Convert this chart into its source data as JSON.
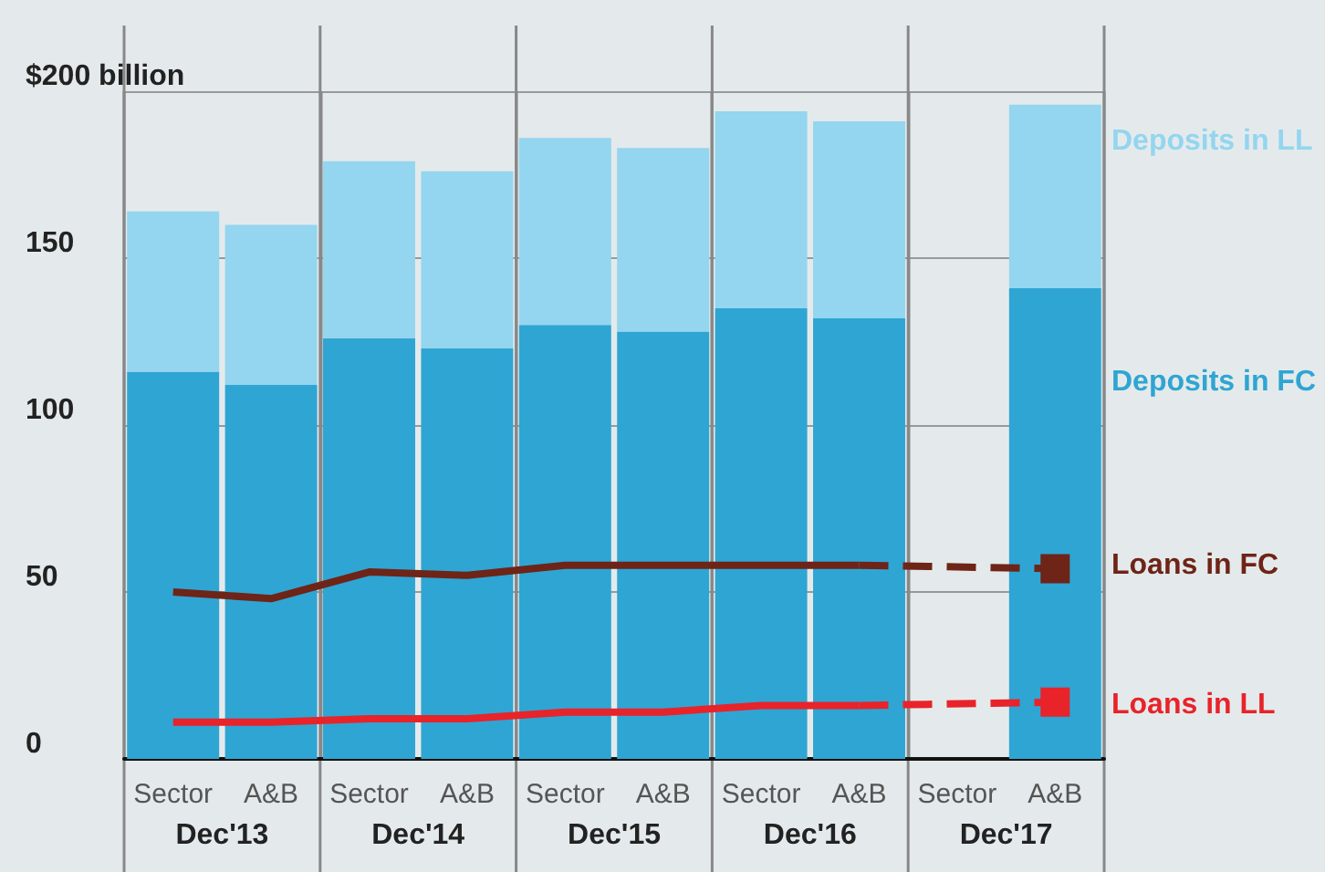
{
  "chart_data": {
    "type": "bar",
    "stacked": true,
    "categories": [
      "Sector",
      "A&B",
      "Sector",
      "A&B",
      "Sector",
      "A&B",
      "Sector",
      "A&B",
      "Sector",
      "A&B"
    ],
    "series": [
      {
        "name": "Deposits in FC",
        "color": "#2fa5d3",
        "values": [
          116,
          112,
          126,
          123,
          130,
          128,
          135,
          132,
          null,
          141
        ]
      },
      {
        "name": "Deposits in LL",
        "color": "#94d5ef",
        "values": [
          48,
          48,
          53,
          53,
          56,
          55,
          59,
          59,
          null,
          55
        ]
      },
      {
        "name": "Loans in FC",
        "type": "line",
        "color": "#6e2417",
        "line_style": "solid",
        "marker": "none",
        "values": [
          50,
          48,
          56,
          55,
          58,
          58,
          58,
          58,
          null,
          null
        ]
      },
      {
        "type": "line",
        "color": "#6e2417",
        "line_style": "dashed",
        "marker": "square",
        "values": [
          null,
          null,
          null,
          null,
          null,
          null,
          null,
          58,
          null,
          57
        ]
      },
      {
        "name": "Loans in LL",
        "type": "line",
        "color": "#e8232a",
        "line_style": "solid",
        "marker": "none",
        "values": [
          11,
          11,
          12,
          12,
          14,
          14,
          16,
          16,
          null,
          null
        ]
      },
      {
        "type": "line",
        "color": "#e8232a",
        "line_style": "dashed",
        "marker": "square",
        "values": [
          null,
          null,
          null,
          null,
          null,
          null,
          null,
          16,
          null,
          17
        ]
      }
    ],
    "ylim": [
      0,
      200
    ],
    "yticks": [
      0,
      50,
      100,
      150,
      {
        "value": 200,
        "label": "$200 billion"
      }
    ],
    "grid": true,
    "legend": "right",
    "annotations": [
      "Dec'13",
      "Dec'14",
      "Dec'15",
      "Dec'16",
      "Dec'17"
    ]
  }
}
